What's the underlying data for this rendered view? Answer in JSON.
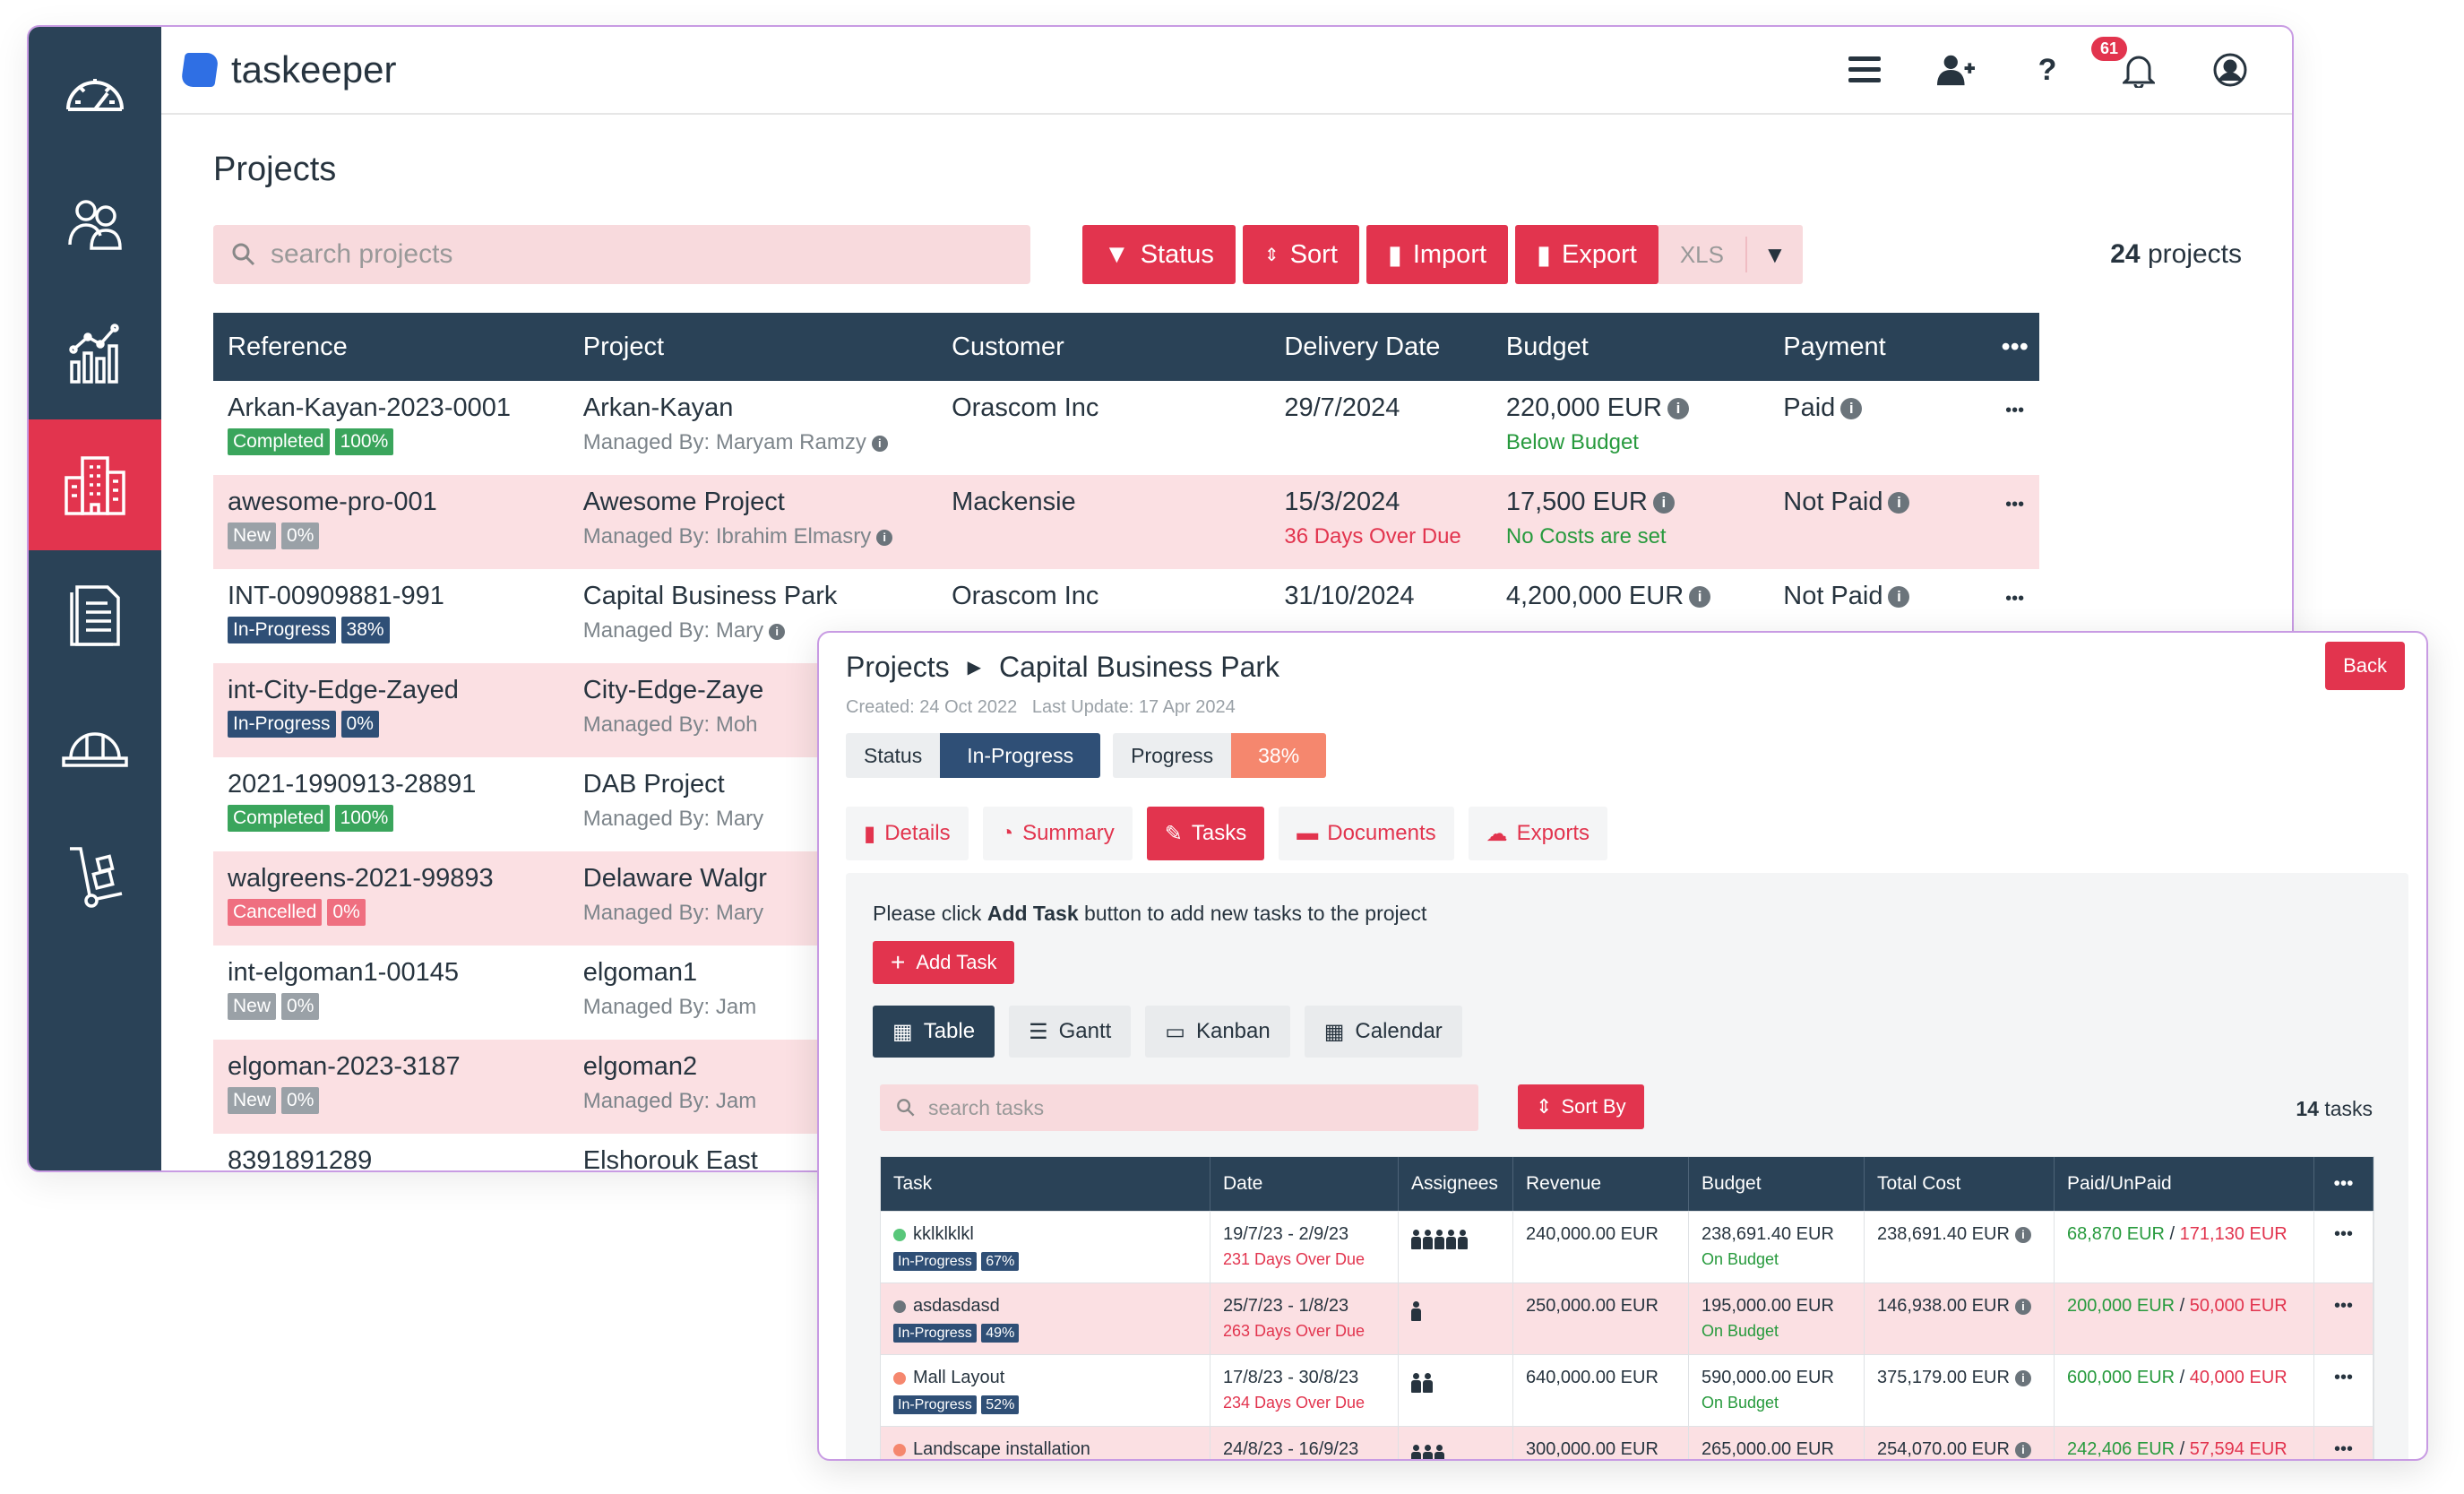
{
  "app": {
    "name": "taskeeper",
    "notifications_count": "61"
  },
  "sidebar": {
    "items": [
      {
        "icon": "dashboard-gauge-icon"
      },
      {
        "icon": "users-icon"
      },
      {
        "icon": "analytics-chart-icon"
      },
      {
        "icon": "buildings-icon",
        "active": true
      },
      {
        "icon": "document-icon"
      },
      {
        "icon": "hard-hat-icon"
      },
      {
        "icon": "hand-truck-icon"
      }
    ]
  },
  "projects_page": {
    "title": "Projects",
    "search_placeholder": "search projects",
    "buttons": {
      "status": "Status",
      "sort": "Sort",
      "import": "Import",
      "export": "Export",
      "format": "XLS"
    },
    "count": "24",
    "count_label": "projects",
    "columns": [
      "Reference",
      "Project",
      "Customer",
      "Delivery Date",
      "Budget",
      "Payment"
    ],
    "rows": [
      {
        "ref": "Arkan-Kayan-2023-0001",
        "status": "Completed",
        "progress": "100%",
        "project": "Arkan-Kayan",
        "managed": "Managed By: Maryam Ramzy",
        "customer": "Orascom Inc",
        "date": "29/7/2024",
        "date_note": "",
        "budget": "220,000 EUR",
        "budget_note": "Below Budget",
        "payment": "Paid"
      },
      {
        "ref": "awesome-pro-001",
        "status": "New",
        "progress": "0%",
        "project": "Awesome Project",
        "managed": "Managed By: Ibrahim Elmasry",
        "customer": "Mackensie",
        "date": "15/3/2024",
        "date_note": "36 Days Over Due",
        "budget": "17,500 EUR",
        "budget_note": "No Costs are set",
        "payment": "Not Paid"
      },
      {
        "ref": "INT-00909881-991",
        "status": "In-Progress",
        "progress": "38%",
        "project": "Capital Business Park",
        "managed": "Managed By: Mary",
        "customer": "Orascom Inc",
        "date": "31/10/2024",
        "date_note": "",
        "budget": "4,200,000 EUR",
        "budget_note": "",
        "payment": "Not Paid"
      },
      {
        "ref": "int-City-Edge-Zayed",
        "status": "In-Progress",
        "progress": "0%",
        "project": "City-Edge-Zaye",
        "managed": "Managed By: Moh",
        "customer": "",
        "date": "",
        "date_note": "",
        "budget": "",
        "budget_note": "",
        "payment": ""
      },
      {
        "ref": "2021-1990913-28891",
        "status": "Completed",
        "progress": "100%",
        "project": "DAB Project",
        "managed": "Managed By: Mary",
        "customer": "",
        "date": "",
        "date_note": "",
        "budget": "",
        "budget_note": "",
        "payment": ""
      },
      {
        "ref": "walgreens-2021-99893",
        "status": "Cancelled",
        "progress": "0%",
        "project": "Delaware Walgr",
        "managed": "Managed By: Mary",
        "customer": "",
        "date": "",
        "date_note": "",
        "budget": "",
        "budget_note": "",
        "payment": ""
      },
      {
        "ref": "int-elgoman1-00145",
        "status": "New",
        "progress": "0%",
        "project": "elgoman1",
        "managed": "Managed By: Jam",
        "customer": "",
        "date": "",
        "date_note": "",
        "budget": "",
        "budget_note": "",
        "payment": ""
      },
      {
        "ref": "elgoman-2023-3187",
        "status": "New",
        "progress": "0%",
        "project": "elgoman2",
        "managed": "Managed By: Jam",
        "customer": "",
        "date": "",
        "date_note": "",
        "budget": "",
        "budget_note": "",
        "payment": ""
      },
      {
        "ref": "8391891289",
        "status": "",
        "progress": "",
        "project": "Elshorouk East",
        "managed": "",
        "customer": "",
        "date": "",
        "date_note": "",
        "budget": "",
        "budget_note": "",
        "payment": ""
      }
    ]
  },
  "detail": {
    "breadcrumb_root": "Projects",
    "breadcrumb_current": "Capital Business Park",
    "created": "Created: 24 Oct 2022",
    "updated": "Last Update: 17 Apr 2024",
    "back": "Back",
    "status_label": "Status",
    "status_value": "In-Progress",
    "progress_label": "Progress",
    "progress_value": "38%",
    "tabs": [
      "Details",
      "Summary",
      "Tasks",
      "Documents",
      "Exports"
    ],
    "note_pre": "Please click ",
    "note_bold": "Add Task",
    "note_post": " button to add new tasks to the project",
    "add_task": "Add Task",
    "views": [
      "Table",
      "Gantt",
      "Kanban",
      "Calendar"
    ],
    "search_placeholder": "search tasks",
    "sort_by": "Sort By",
    "task_count": "14",
    "task_count_label": "tasks",
    "columns": [
      "Task",
      "Date",
      "Assignees",
      "Revenue",
      "Budget",
      "Total Cost",
      "Paid/UnPaid"
    ],
    "tasks": [
      {
        "name": "kklklklkl",
        "dot": "#59c77a",
        "status": "In-Progress",
        "progress": "67%",
        "date": "19/7/23 - 2/9/23",
        "due": "231 Days Over Due",
        "assignees": 5,
        "revenue": "240,000.00 EUR",
        "budget": "238,691.40 EUR",
        "budget_note": "On Budget",
        "cost": "238,691.40 EUR",
        "paid": "68,870 EUR",
        "unpaid": "171,130 EUR"
      },
      {
        "name": "asdasdasd",
        "dot": "#6b747b",
        "status": "In-Progress",
        "progress": "49%",
        "date": "25/7/23 - 1/8/23",
        "due": "263 Days Over Due",
        "assignees": 1,
        "revenue": "250,000.00 EUR",
        "budget": "195,000.00 EUR",
        "budget_note": "On Budget",
        "cost": "146,938.00 EUR",
        "paid": "200,000 EUR",
        "unpaid": "50,000 EUR"
      },
      {
        "name": "Mall Layout",
        "dot": "#f5876e",
        "status": "In-Progress",
        "progress": "52%",
        "date": "17/8/23 - 30/8/23",
        "due": "234 Days Over Due",
        "assignees": 2,
        "revenue": "640,000.00 EUR",
        "budget": "590,000.00 EUR",
        "budget_note": "On Budget",
        "cost": "375,179.00 EUR",
        "paid": "600,000 EUR",
        "unpaid": "40,000 EUR"
      },
      {
        "name": "Landscape installation",
        "dot": "#f5876e",
        "status": "",
        "progress": "",
        "date": "24/8/23 - 16/9/23",
        "due": "",
        "assignees": 3,
        "revenue": "300,000.00 EUR",
        "budget": "265,000.00 EUR",
        "budget_note": "",
        "cost": "254,070.00 EUR",
        "paid": "242,406 EUR",
        "unpaid": "57,594 EUR"
      }
    ]
  },
  "colors": {
    "accent": "#e2344e",
    "navy": "#2a4257",
    "pink_row": "#fbe0e3",
    "green": "#279a3d"
  }
}
